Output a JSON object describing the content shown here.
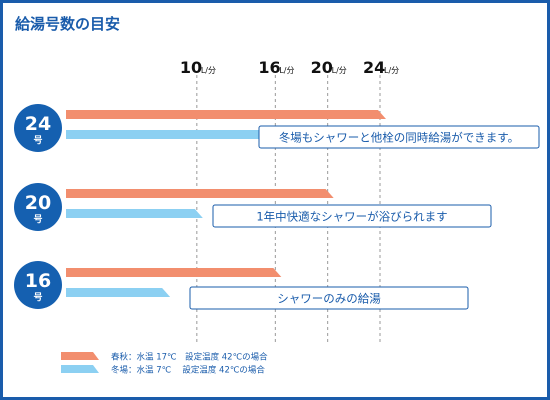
{
  "title": "給湯号数の目安",
  "colors": {
    "accent": "#1a5cab",
    "spring_autumn_bar": "#f28e6e",
    "winter_bar": "#8cd0f2",
    "badge_fill": "#1560b0",
    "callout_border": "#1a5cab",
    "gridline": "#999999"
  },
  "chart_data": {
    "type": "bar",
    "orientation": "horizontal",
    "title": "給湯号数の目安",
    "x_unit": "L/分",
    "x_ticks": [
      10,
      16,
      20,
      24
    ],
    "xlim": [
      0,
      24
    ],
    "grid": true,
    "legend_position": "bottom-left",
    "categories": [
      {
        "number": "24",
        "suffix": "号",
        "note": "冬場もシャワーと他栓の同時給湯ができます。"
      },
      {
        "number": "20",
        "suffix": "号",
        "note": "1年中快適なシャワーが浴びられます"
      },
      {
        "number": "16",
        "suffix": "号",
        "note": "シャワーのみの給湯"
      }
    ],
    "series": [
      {
        "name": "春秋：水温 17℃　設定温度 42℃の場合",
        "color": "#f28e6e",
        "values": [
          24,
          20,
          16
        ]
      },
      {
        "name": "冬場：水温 7℃　 設定温度 42℃の場合",
        "color": "#8cd0f2",
        "values": [
          16,
          10,
          7.5
        ]
      }
    ]
  }
}
